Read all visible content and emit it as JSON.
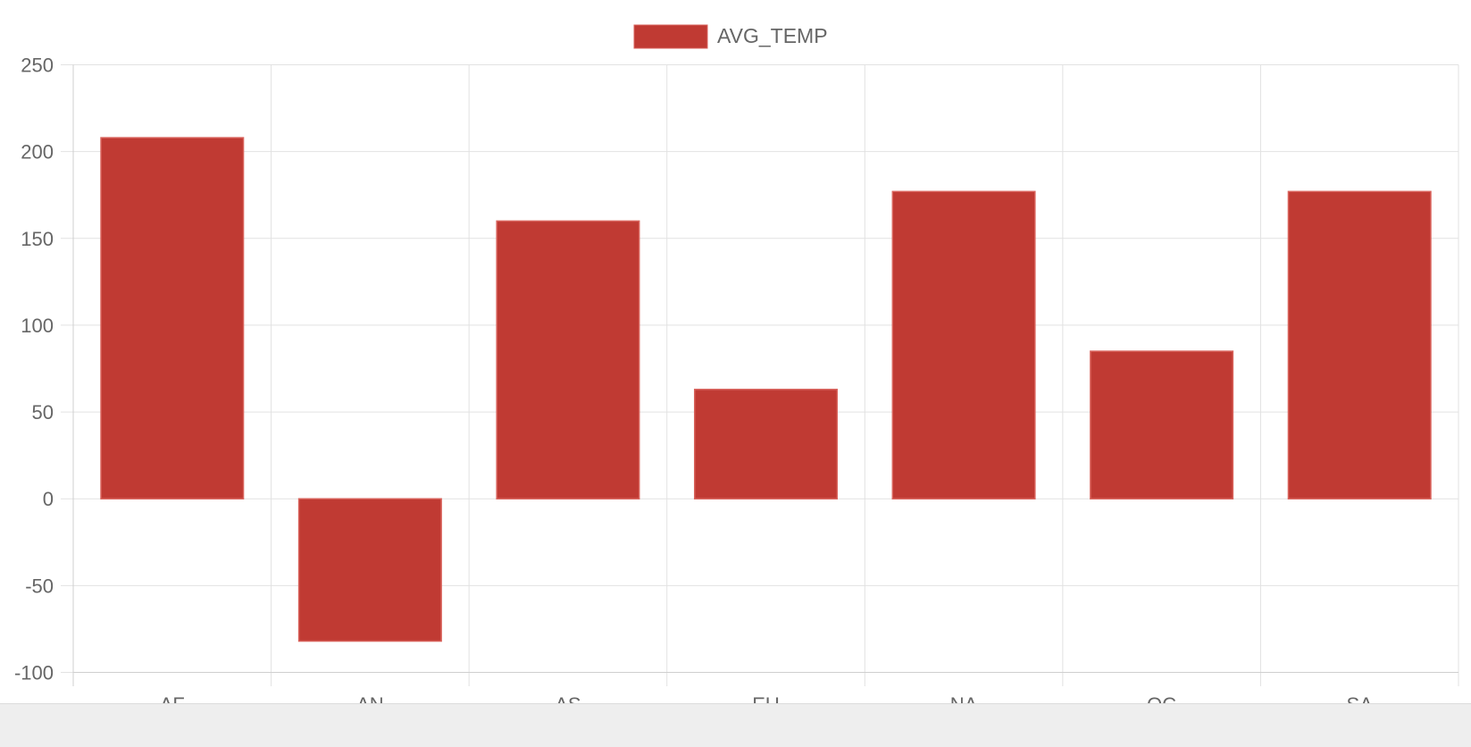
{
  "chart_data": {
    "type": "bar",
    "categories": [
      "AF",
      "AN",
      "AS",
      "EU",
      "NA",
      "OC",
      "SA"
    ],
    "series": [
      {
        "name": "AVG_TEMP",
        "values": [
          208,
          -82,
          160,
          63,
          177,
          85,
          177
        ]
      }
    ],
    "ylim": [
      -100,
      250
    ],
    "yticks": [
      250,
      200,
      150,
      100,
      50,
      0,
      -50,
      -100
    ],
    "ytick_labels": [
      "250",
      "200",
      "150",
      "100",
      "50",
      "0",
      "-50",
      "-100"
    ],
    "grid": true,
    "legend_position": "top-center",
    "colors": {
      "bar_fill": "#c03a33",
      "bar_border": "#d9635c",
      "grid": "#e2e2e2",
      "axis": "#cfcfcf",
      "text": "#666666"
    }
  }
}
